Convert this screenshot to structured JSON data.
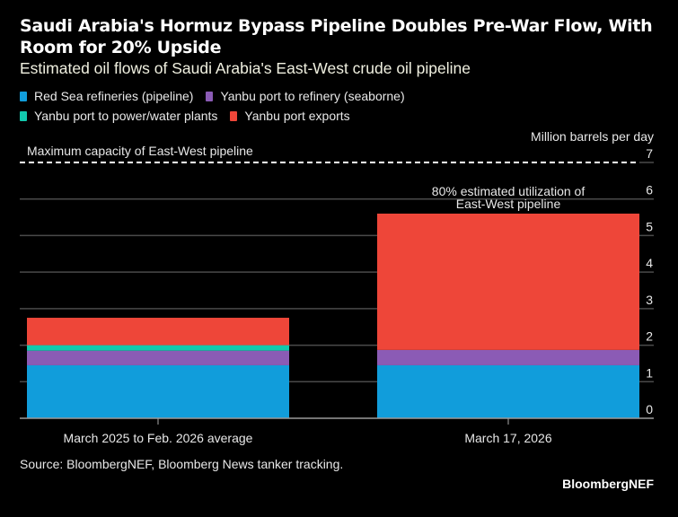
{
  "header": {
    "title": "Saudi Arabia's Hormuz Bypass Pipeline Doubles Pre-War Flow, With Room for 20% Upside",
    "subtitle": "Estimated oil flows of Saudi Arabia's East-West crude oil pipeline"
  },
  "footer": {
    "source": "Source: BloombergNEF, Bloomberg News tanker tracking.",
    "brand": "BloombergNEF"
  },
  "chart_data": {
    "type": "bar",
    "stacked": true,
    "title": "Saudi Arabia's Hormuz Bypass Pipeline Doubles Pre-War Flow, With Room for 20% Upside",
    "subtitle": "Estimated oil flows of Saudi Arabia's East-West crude oil pipeline",
    "ylabel": "Million barrels per day",
    "xlabel": "",
    "ylim": [
      0,
      7
    ],
    "yticks": [
      0,
      1,
      2,
      3,
      4,
      5,
      6,
      7
    ],
    "grid": true,
    "legend_position": "top-left",
    "categories": [
      "March 2025 to Feb. 2026 average",
      "March 17, 2026"
    ],
    "series": [
      {
        "name": "Red Sea refineries (pipeline)",
        "color": "#119ddb",
        "values": [
          1.45,
          1.45
        ]
      },
      {
        "name": "Yanbu port to refinery (seaborne)",
        "color": "#8b5bb5",
        "values": [
          0.4,
          0.42
        ]
      },
      {
        "name": "Yanbu port to power/water plants",
        "color": "#12c9ad",
        "values": [
          0.15,
          0
        ]
      },
      {
        "name": "Yanbu port exports",
        "color": "#ee4639",
        "values": [
          0.75,
          3.73
        ]
      }
    ],
    "legend_order": [
      0,
      1,
      2,
      3
    ],
    "annotations": [
      {
        "text": "Maximum capacity of East-West pipeline",
        "type": "hline",
        "y": 7
      },
      {
        "text": "80% estimated utilization of East-West pipeline",
        "type": "label",
        "category": 1
      }
    ]
  }
}
